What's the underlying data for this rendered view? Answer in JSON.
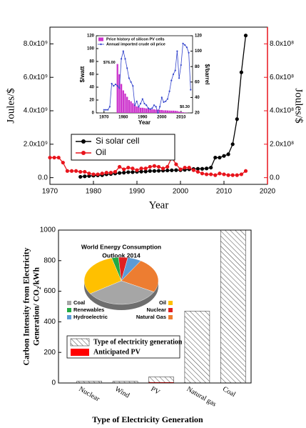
{
  "chart_data": [
    {
      "type": "line",
      "x_label": "Year",
      "y_label": "Joules/$",
      "y2_label": "Joules/$",
      "y2_color": "#e8141c",
      "xlim": [
        1970,
        2020
      ],
      "xticks": [
        1970,
        1980,
        1990,
        2000,
        2010,
        2020
      ],
      "ylim": [
        -400000000.0,
        9000000000.0
      ],
      "yticks": [
        {
          "value": 0,
          "label": "0.0"
        },
        {
          "value": 2000000000.0,
          "label": "2.0x10⁹"
        },
        {
          "value": 4000000000.0,
          "label": "4.0x10⁹"
        },
        {
          "value": 6000000000.0,
          "label": "6.0x10⁹"
        },
        {
          "value": 8000000000.0,
          "label": "8.0x10⁹"
        }
      ],
      "y2lim": [
        -40000000.0,
        900000000.0
      ],
      "y2ticks": [
        {
          "value": 0,
          "label": "0.0"
        },
        {
          "value": 200000000.0,
          "label": "2.0x10⁸"
        },
        {
          "value": 400000000.0,
          "label": "4.0x10⁸"
        },
        {
          "value": 600000000.0,
          "label": "6.0x10⁸"
        },
        {
          "value": 800000000.0,
          "label": "8.0x10⁸"
        }
      ],
      "legend": "lower left",
      "series": [
        {
          "name": "Si solar cell",
          "color": "#000000",
          "x": [
            1977,
            1978,
            1979,
            1980,
            1981,
            1982,
            1983,
            1984,
            1985,
            1986,
            1987,
            1988,
            1989,
            1990,
            1991,
            1992,
            1993,
            1994,
            1995,
            1996,
            1997,
            1998,
            1999,
            2000,
            2001,
            2002,
            2003,
            2004,
            2005,
            2006,
            2007,
            2008,
            2009,
            2010,
            2011,
            2012,
            2013,
            2014,
            2015
          ],
          "values": [
            50000000.0,
            80000000.0,
            100000000.0,
            120000000.0,
            140000000.0,
            150000000.0,
            200000000.0,
            220000000.0,
            250000000.0,
            280000000.0,
            300000000.0,
            330000000.0,
            330000000.0,
            350000000.0,
            360000000.0,
            370000000.0,
            400000000.0,
            400000000.0,
            410000000.0,
            420000000.0,
            430000000.0,
            440000000.0,
            450000000.0,
            450000000.0,
            470000000.0,
            500000000.0,
            520000000.0,
            530000000.0,
            530000000.0,
            550000000.0,
            600000000.0,
            1200000000.0,
            1200000000.0,
            1300000000.0,
            1400000000.0,
            2000000000.0,
            3500000000.0,
            6300000000.0,
            8500000000.0
          ]
        },
        {
          "name": "Oil",
          "color": "#e8141c",
          "axis": "y2",
          "x": [
            1970,
            1971,
            1972,
            1973,
            1974,
            1975,
            1976,
            1977,
            1978,
            1979,
            1980,
            1981,
            1982,
            1983,
            1984,
            1985,
            1986,
            1987,
            1988,
            1989,
            1990,
            1991,
            1992,
            1993,
            1994,
            1995,
            1996,
            1997,
            1998,
            1999,
            2000,
            2001,
            2002,
            2003,
            2004,
            2005,
            2006,
            2007,
            2008,
            2009,
            2010,
            2011,
            2012,
            2013,
            2014,
            2015
          ],
          "values": [
            120000000.0,
            120000000.0,
            120000000.0,
            90000000.0,
            40000000.0,
            40000000.0,
            40000000.0,
            35000000.0,
            35000000.0,
            25000000.0,
            20000000.0,
            20000000.0,
            25000000.0,
            30000000.0,
            30000000.0,
            35000000.0,
            65000000.0,
            50000000.0,
            60000000.0,
            55000000.0,
            45000000.0,
            55000000.0,
            55000000.0,
            65000000.0,
            70000000.0,
            65000000.0,
            55000000.0,
            65000000.0,
            120000000.0,
            80000000.0,
            50000000.0,
            60000000.0,
            60000000.0,
            45000000.0,
            35000000.0,
            25000000.0,
            20000000.0,
            20000000.0,
            15000000.0,
            25000000.0,
            20000000.0,
            15000000.0,
            15000000.0,
            15000000.0,
            20000000.0,
            40000000.0
          ]
        }
      ]
    },
    {
      "type": "combo",
      "x_label": "Year",
      "y_label": "$/watt",
      "y2_label": "$/barrel",
      "xlim": [
        1966,
        2016
      ],
      "xticks": [
        1970,
        1980,
        1990,
        2000,
        2010
      ],
      "ylim": [
        0,
        120
      ],
      "yticks": [
        0,
        20,
        40,
        60,
        80,
        100,
        120
      ],
      "y2lim": [
        20,
        120
      ],
      "y2ticks": [
        20,
        40,
        60,
        80,
        100,
        120
      ],
      "legend": "upper left",
      "series": [
        {
          "name": "Price history of silicon PV cells",
          "type": "bar",
          "color": "#cc33cc",
          "x": [
            1977,
            1978,
            1979,
            1980,
            1981,
            1982,
            1983,
            1984,
            1985,
            1986,
            1987,
            1988,
            1989,
            1990,
            1991,
            1992,
            1993,
            1994,
            1995,
            1996,
            1997,
            1998,
            1999,
            2000,
            2001,
            2002,
            2003,
            2004,
            2005,
            2006,
            2007,
            2008,
            2009,
            2010,
            2011,
            2012,
            2013
          ],
          "values": [
            76,
            60,
            45,
            35,
            30,
            25,
            20,
            18,
            15,
            12,
            10,
            9,
            8,
            8,
            7.5,
            7,
            6.5,
            6,
            5.5,
            5.5,
            5,
            5,
            4.5,
            4.5,
            4,
            4,
            3.8,
            3.6,
            3.5,
            3.5,
            3.3,
            3,
            2,
            1.5,
            1,
            0.7,
            0.3
          ],
          "value_labels": [
            "$76.00",
            null,
            null,
            null,
            null,
            null,
            null,
            null,
            null,
            null,
            null,
            null,
            null,
            null,
            null,
            null,
            null,
            null,
            null,
            null,
            null,
            null,
            null,
            null,
            null,
            null,
            null,
            null,
            null,
            null,
            null,
            null,
            null,
            null,
            null,
            null,
            "$0.30"
          ]
        },
        {
          "name": "Annual imported crude oil price",
          "type": "line",
          "axis": "y2",
          "color": "#3344cc",
          "x": [
            1970,
            1971,
            1972,
            1973,
            1974,
            1975,
            1976,
            1977,
            1978,
            1979,
            1980,
            1981,
            1982,
            1983,
            1984,
            1985,
            1986,
            1987,
            1988,
            1989,
            1990,
            1991,
            1992,
            1993,
            1994,
            1995,
            1996,
            1997,
            1998,
            1999,
            2000,
            2001,
            2002,
            2003,
            2004,
            2005,
            2006,
            2007,
            2008,
            2009,
            2010,
            2011,
            2012,
            2013,
            2014,
            2015
          ],
          "values": [
            24,
            24,
            24,
            28,
            58,
            55,
            57,
            55,
            52,
            90,
            100,
            90,
            78,
            65,
            60,
            55,
            30,
            35,
            28,
            32,
            38,
            32,
            30,
            26,
            25,
            26,
            30,
            28,
            20,
            28,
            40,
            34,
            35,
            38,
            48,
            62,
            70,
            75,
            100,
            65,
            82,
            110,
            108,
            105,
            98,
            50
          ]
        }
      ]
    },
    {
      "type": "bar",
      "x_label": "Type of Electricity Generation",
      "y_label": [
        "Carbon Intensity from Electricity",
        "Generation/ CO₂/kWh"
      ],
      "categories": [
        "Nuclear",
        "Wind",
        "PV",
        "Natural gas",
        "Coal"
      ],
      "ylim": [
        0,
        1000
      ],
      "yticks": [
        0,
        200,
        400,
        600,
        800,
        1000
      ],
      "legend": "center left",
      "series": [
        {
          "name": "Type of electricity generation",
          "pattern": "hatch",
          "color": "#444444",
          "values": [
            12,
            11,
            40,
            470,
            1000
          ]
        },
        {
          "name": "Anticipated PV",
          "color": "#ff0000",
          "values": [
            null,
            null,
            5,
            null,
            null
          ]
        }
      ]
    },
    {
      "type": "pie",
      "title": [
        "World Energy Consumption",
        "Outlook 2014"
      ],
      "categories": [
        "Coal",
        "Renewables",
        "Hydroelectric",
        "Oil",
        "Nuclear",
        "Natural Gas"
      ],
      "values": [
        33,
        3,
        6,
        30,
        4,
        24
      ],
      "colors": [
        "#a6a6a6",
        "#22aa44",
        "#5b9bd5",
        "#ffc000",
        "#e02020",
        "#ed7d31"
      ]
    }
  ]
}
